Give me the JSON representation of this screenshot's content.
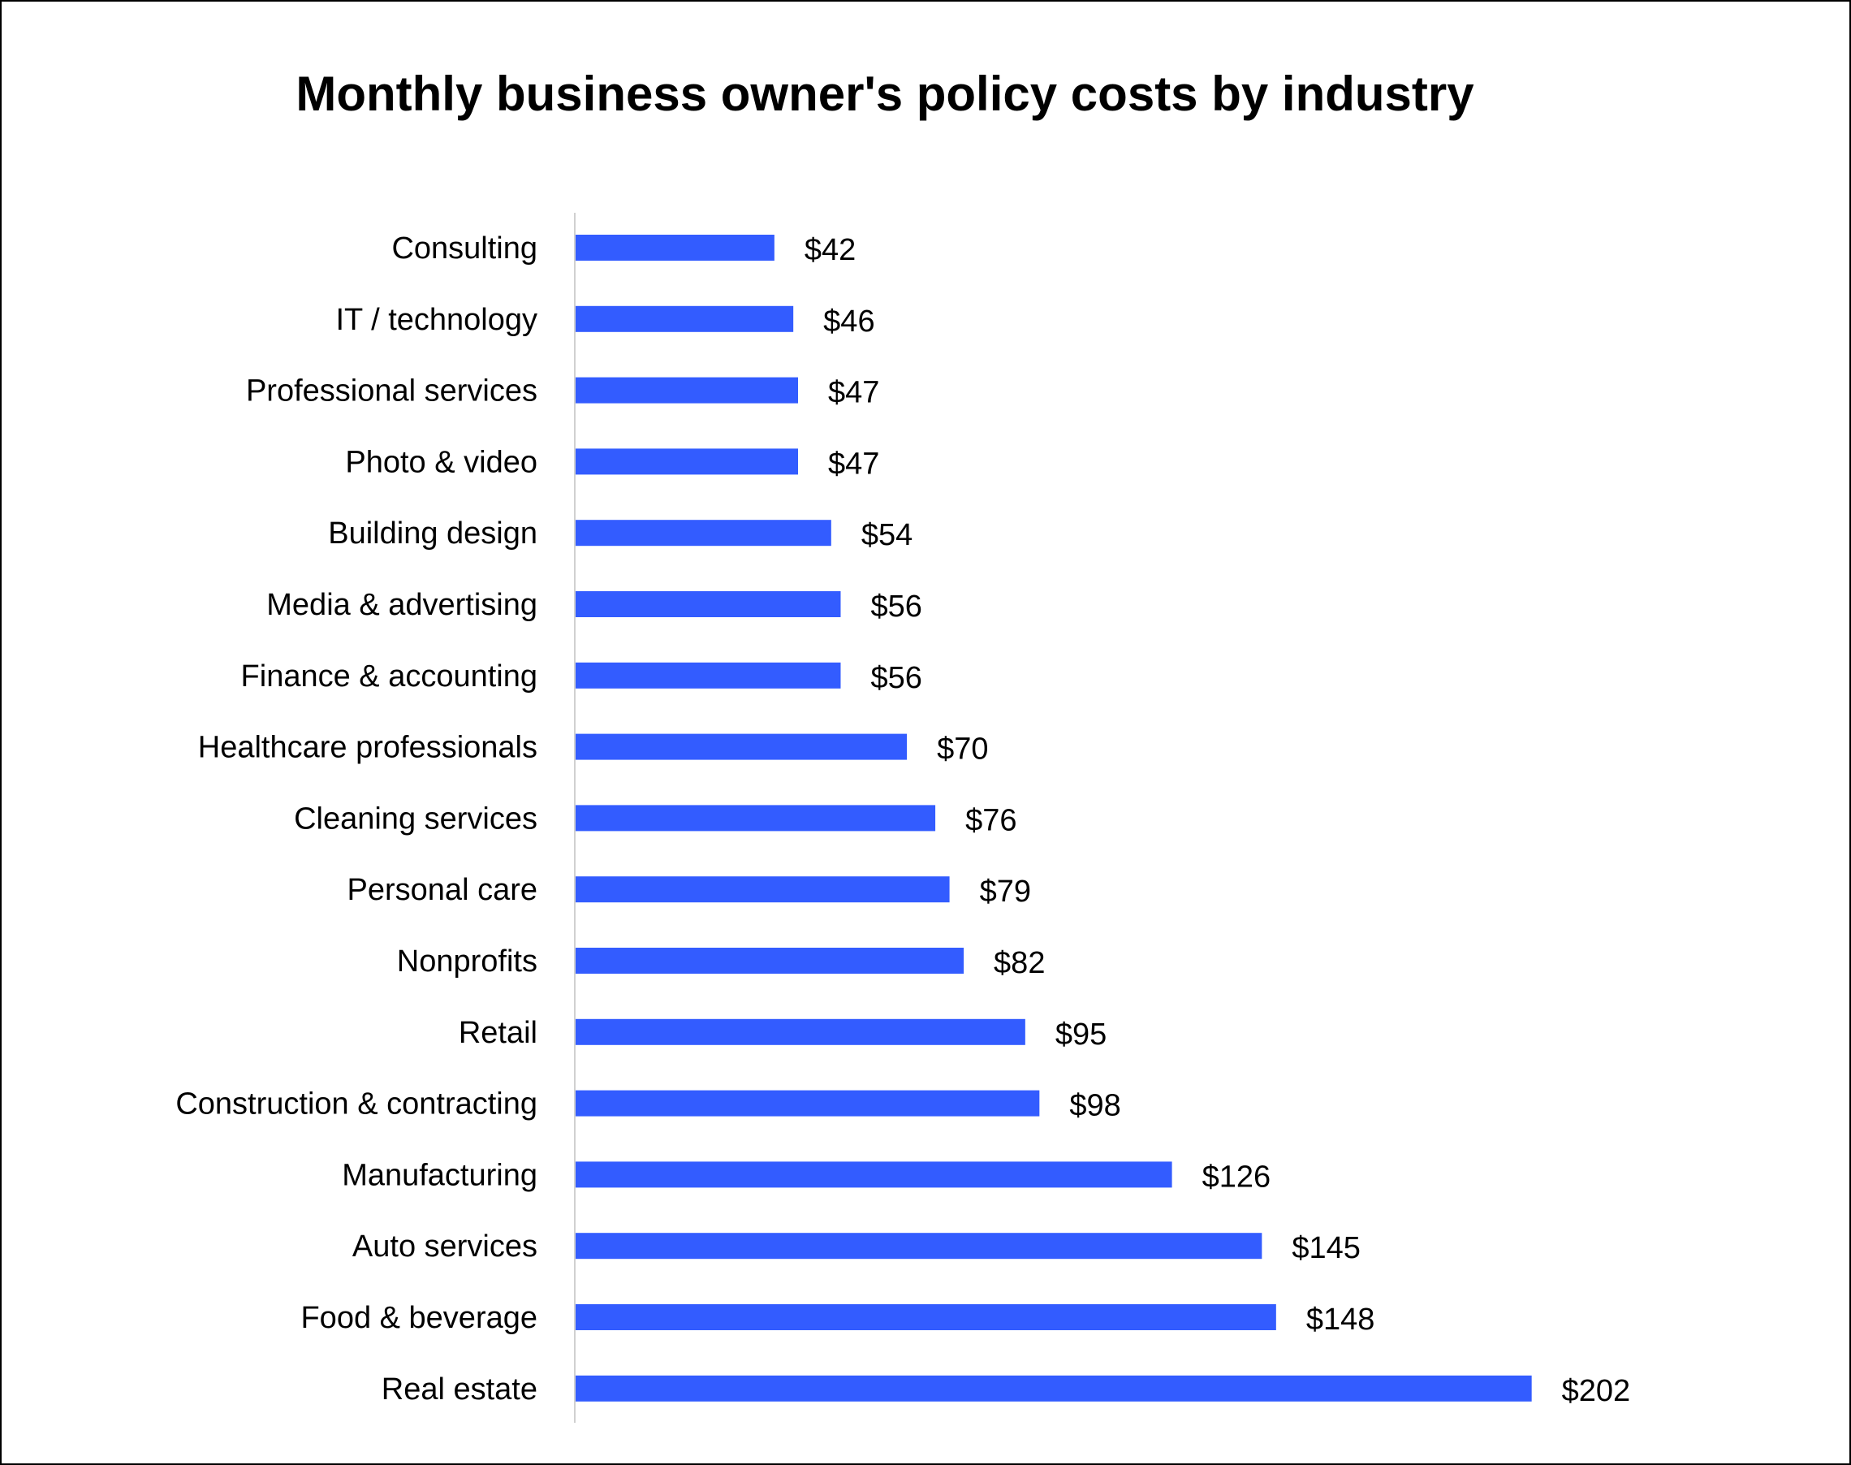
{
  "chart_data": {
    "type": "bar",
    "orientation": "horizontal",
    "title": "Monthly business owner's policy costs by industry",
    "xlabel": "",
    "ylabel": "",
    "xlim": [
      0,
      202
    ],
    "grid": false,
    "bar_color": "#335CFF",
    "value_prefix": "$",
    "categories": [
      "Consulting",
      "IT / technology",
      "Professional services",
      "Photo & video",
      "Building design",
      "Media & advertising",
      "Finance & accounting",
      "Healthcare professionals",
      "Cleaning services",
      "Personal care",
      "Nonprofits",
      "Retail",
      "Construction & contracting",
      "Manufacturing",
      "Auto services",
      "Food & beverage",
      "Real estate"
    ],
    "values": [
      42,
      46,
      47,
      47,
      54,
      56,
      56,
      70,
      76,
      79,
      82,
      95,
      98,
      126,
      145,
      148,
      202
    ],
    "data_labels": [
      "$42",
      "$46",
      "$47",
      "$47",
      "$54",
      "$56",
      "$56",
      "$70",
      "$76",
      "$79",
      "$82",
      "$95",
      "$98",
      "$126",
      "$145",
      "$148",
      "$202"
    ]
  }
}
